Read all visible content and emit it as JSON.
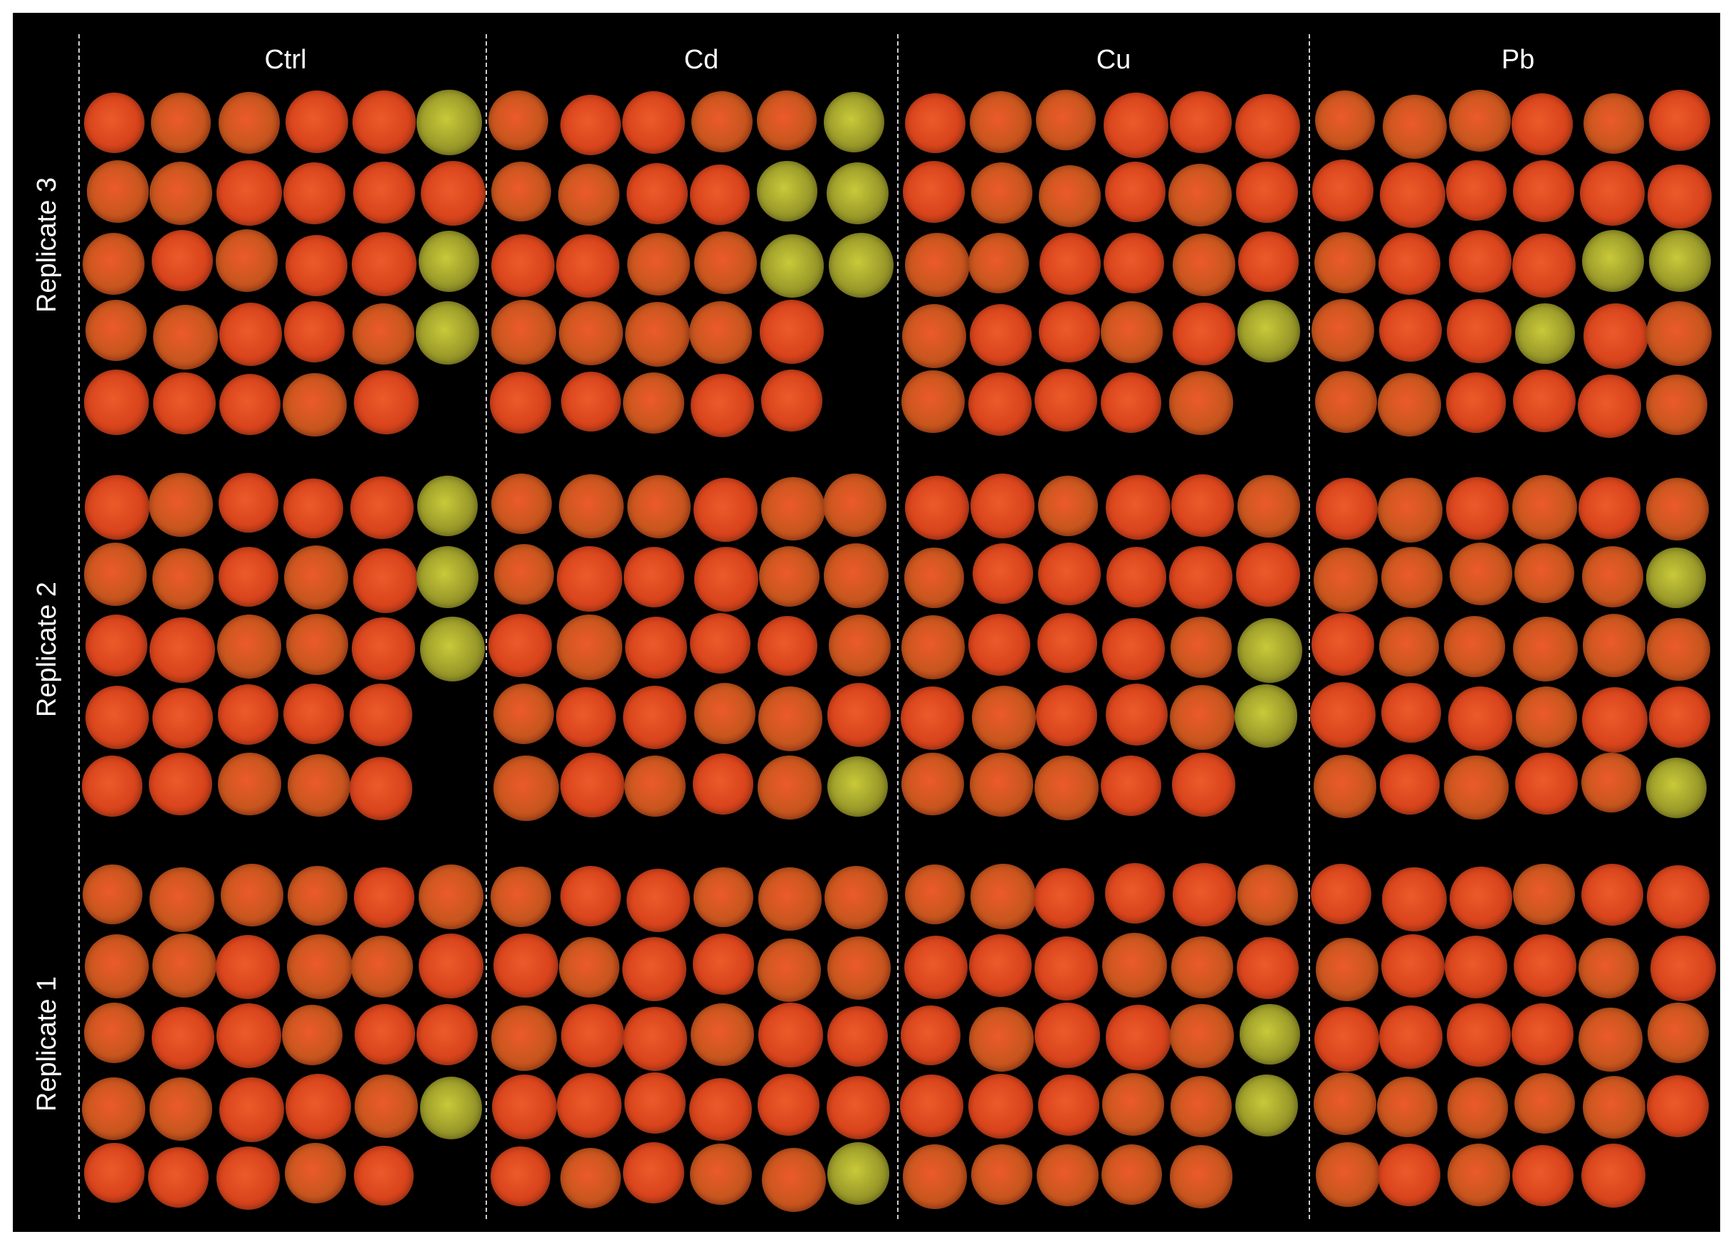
{
  "columns": [
    {
      "label": "Ctrl"
    },
    {
      "label": "Cd"
    },
    {
      "label": "Cu"
    },
    {
      "label": "Pb"
    }
  ],
  "rows": [
    {
      "label": "Replicate 3"
    },
    {
      "label": "Replicate 2"
    },
    {
      "label": "Replicate 1"
    }
  ],
  "panels": [
    [
      {
        "column": "Ctrl",
        "replicate": "Replicate 3",
        "row_counts": [
          6,
          6,
          6,
          6,
          5
        ],
        "green": [
          [
            0,
            5
          ],
          [
            2,
            5
          ],
          [
            3,
            5
          ]
        ]
      },
      {
        "column": "Cd",
        "replicate": "Replicate 3",
        "row_counts": [
          6,
          6,
          6,
          5,
          5
        ],
        "green": [
          [
            0,
            5
          ],
          [
            1,
            5
          ],
          [
            2,
            5
          ],
          [
            1,
            4
          ],
          [
            2,
            4
          ]
        ]
      },
      {
        "column": "Cu",
        "replicate": "Replicate 3",
        "row_counts": [
          6,
          6,
          6,
          6,
          5
        ],
        "green": [
          [
            3,
            5
          ]
        ]
      },
      {
        "column": "Pb",
        "replicate": "Replicate 3",
        "row_counts": [
          6,
          6,
          6,
          6,
          6
        ],
        "green": [
          [
            2,
            4
          ],
          [
            2,
            5
          ],
          [
            3,
            3
          ]
        ]
      }
    ],
    [
      {
        "column": "Ctrl",
        "replicate": "Replicate 2",
        "row_counts": [
          6,
          6,
          6,
          5,
          5
        ],
        "green": [
          [
            0,
            5
          ],
          [
            1,
            5
          ],
          [
            2,
            5
          ]
        ]
      },
      {
        "column": "Cd",
        "replicate": "Replicate 2",
        "row_counts": [
          6,
          6,
          6,
          6,
          6
        ],
        "green": [
          [
            4,
            5
          ]
        ]
      },
      {
        "column": "Cu",
        "replicate": "Replicate 2",
        "row_counts": [
          6,
          6,
          6,
          6,
          5
        ],
        "green": [
          [
            2,
            5
          ],
          [
            3,
            5
          ]
        ]
      },
      {
        "column": "Pb",
        "replicate": "Replicate 2",
        "row_counts": [
          6,
          6,
          6,
          6,
          6
        ],
        "green": [
          [
            1,
            5
          ],
          [
            4,
            5
          ]
        ]
      }
    ],
    [
      {
        "column": "Ctrl",
        "replicate": "Replicate 1",
        "row_counts": [
          6,
          6,
          6,
          6,
          5
        ],
        "green": [
          [
            3,
            5
          ]
        ]
      },
      {
        "column": "Cd",
        "replicate": "Replicate 1",
        "row_counts": [
          6,
          6,
          6,
          6,
          6
        ],
        "green": [
          [
            4,
            5
          ]
        ]
      },
      {
        "column": "Cu",
        "replicate": "Replicate 1",
        "row_counts": [
          6,
          6,
          6,
          6,
          5
        ],
        "green": [
          [
            2,
            5
          ],
          [
            3,
            5
          ]
        ]
      },
      {
        "column": "Pb",
        "replicate": "Replicate 1",
        "row_counts": [
          6,
          6,
          6,
          6,
          5
        ],
        "green": []
      }
    ]
  ],
  "colors": {
    "background": "#000000",
    "embryo_red": "#d9441c",
    "embryo_orange": "#c8561e",
    "embryo_green": "#9a9a2a",
    "divider": "#cfcfcf",
    "text": "#ffffff"
  }
}
